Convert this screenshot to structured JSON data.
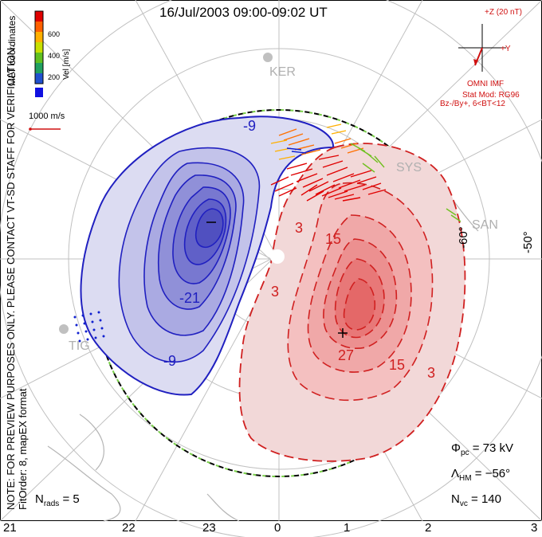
{
  "title": "16/Jul/2003 09:00-09:02 UT",
  "colorbar": {
    "ticks": [
      "600",
      "400",
      "200"
    ],
    "label": "Vel [m/s]",
    "colors": [
      "#e00000",
      "#ff6000",
      "#ffb000",
      "#c8e000",
      "#60c020",
      "#20a060",
      "#2050d0",
      "#1010e0"
    ]
  },
  "coords_label": "MLT coordinates",
  "velocity_scale": "1000 m/s",
  "imf": {
    "header": "+Z (20 nT)",
    "y_label": "+Y",
    "title": "OMNI IMF",
    "stat_mod": "Stat Mod: RG96",
    "condition": "Bz-/By+, 6<BT<12"
  },
  "stations": [
    "KER",
    "SYS",
    "SAN",
    "TIG"
  ],
  "latitude_labels": [
    "-60°",
    "-50°"
  ],
  "contours": {
    "negative_labels": [
      "-9",
      "-21",
      "-9"
    ],
    "positive_labels": [
      "3",
      "15",
      "3",
      "27",
      "15",
      "3"
    ],
    "min_marker": "–",
    "max_marker": "+"
  },
  "stats": {
    "phi_pc_label": "Φ",
    "phi_pc_sub": "pc",
    "phi_pc_value": "= 73 kV",
    "lambda_label": "Λ",
    "lambda_sub": "HM",
    "lambda_value": "= −56°",
    "nvc_label": "N",
    "nvc_sub": "vc",
    "nvc_value": "= 140",
    "nrads_label": "N",
    "nrads_sub": "rads",
    "nrads_value": "= 5"
  },
  "mlt_labels": [
    "21",
    "22",
    "23",
    "0",
    "1",
    "2",
    "3"
  ],
  "note_line1": "NOTE: FOR PREVIEW PURPOSES ONLY. PLEASE CONTACT VT-SD STAFF FOR VERIFICATION.",
  "note_line2": "FitOrder: 8, mapEX format"
}
